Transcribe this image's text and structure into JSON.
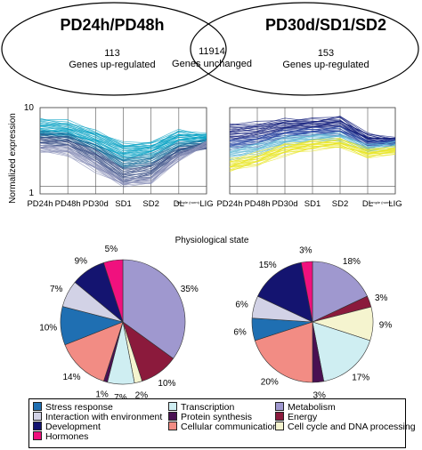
{
  "venn": {
    "left_title": "PD24h/PD48h",
    "left_count": "113",
    "left_caption": "Genes up-regulated",
    "center_count": "11914",
    "center_caption": "Genes unchanged",
    "right_title": "PD30d/SD1/SD2",
    "right_count": "153",
    "right_caption": "Genes up-regulated"
  },
  "line_plots": {
    "ylabel": "Normalized expression",
    "xlabel": "Physiological state",
    "y_ticks": [
      "10",
      "1"
    ],
    "left_small_text": "sample (norm)",
    "right_small_text": "sample (norm)"
  },
  "legend": {
    "items": [
      {
        "label": "Stress response",
        "color": "#1f6fb2"
      },
      {
        "label": "Transcription",
        "color": "#cfeef2"
      },
      {
        "label": "Metabolism",
        "color": "#9f98cf"
      },
      {
        "label": "Interaction with environment",
        "color": "#d2d2e6"
      },
      {
        "label": "Protein synthesis",
        "color": "#4a1052"
      },
      {
        "label": "Energy",
        "color": "#8b1a3c"
      },
      {
        "label": "Development",
        "color": "#141470"
      },
      {
        "label": "Cellular communication",
        "color": "#f28c84"
      },
      {
        "label": "Cell cycle and DNA processing",
        "color": "#f5f4cf"
      },
      {
        "label": "Hormones",
        "color": "#f0117e"
      }
    ]
  },
  "chart_data": [
    {
      "type": "line",
      "title": "",
      "x": [
        "PD24h",
        "PD48h",
        "PD30d",
        "SD1",
        "SD2",
        "DL",
        "LIG"
      ],
      "xlabel": "Physiological state",
      "ylabel": "Normalized expression",
      "yscale": "log",
      "ylim": [
        0.8,
        10
      ],
      "y_ticks": [
        1,
        10
      ],
      "grid": false,
      "series": [
        {
          "values": [
            7,
            6.5,
            5,
            3.5,
            3.5,
            5,
            4.5
          ]
        },
        {
          "values": [
            5,
            4.8,
            3.6,
            2.5,
            2.8,
            4,
            4
          ]
        },
        {
          "values": [
            4.5,
            4.2,
            3,
            1.8,
            2,
            3,
            3.5
          ]
        },
        {
          "values": [
            3.5,
            3.4,
            2.2,
            1.2,
            1.4,
            2.6,
            3.2
          ]
        },
        {
          "values": [
            2.8,
            2.5,
            1.6,
            1.05,
            1.1,
            2.2,
            3.6
          ]
        }
      ]
    },
    {
      "type": "line",
      "title": "",
      "x": [
        "PD24h",
        "PD48h",
        "PD30d",
        "SD1",
        "SD2",
        "DL",
        "LIG"
      ],
      "xlabel": "Physiological state",
      "ylabel": "Normalized expression",
      "yscale": "log",
      "ylim": [
        0.8,
        10
      ],
      "y_ticks": [
        1,
        10
      ],
      "grid": false,
      "series": [
        {
          "values": [
            6,
            6.2,
            7,
            7,
            7.5,
            4.5,
            4
          ]
        },
        {
          "values": [
            4,
            4.3,
            5.2,
            5.5,
            5.8,
            3.8,
            3.6
          ]
        },
        {
          "values": [
            3,
            3.4,
            4.2,
            4.5,
            4.6,
            3.2,
            3.6
          ]
        },
        {
          "values": [
            2,
            2.4,
            3.2,
            3.6,
            3.8,
            2.8,
            3
          ]
        },
        {
          "values": [
            1.6,
            1.9,
            2.6,
            3,
            3.2,
            2.4,
            2.7
          ]
        }
      ]
    },
    {
      "type": "pie",
      "title": "",
      "categories": [
        "Metabolism",
        "Energy",
        "Cell cycle and DNA processing",
        "Transcription",
        "Protein synthesis",
        "Cellular communication",
        "Stress response",
        "Interaction with environment",
        "Development",
        "Hormones"
      ],
      "values": [
        35,
        10,
        2,
        7,
        1,
        14,
        10,
        7,
        9,
        5
      ],
      "labels": [
        "35%",
        "10%",
        "2%",
        "7%",
        "1%",
        "14%",
        "10%",
        "7%",
        "9%",
        "5%"
      ]
    },
    {
      "type": "pie",
      "title": "",
      "categories": [
        "Metabolism",
        "Energy",
        "Cell cycle and DNA processing",
        "Transcription",
        "Protein synthesis",
        "Cellular communication",
        "Stress response",
        "Interaction with environment",
        "Development",
        "Hormones"
      ],
      "values": [
        18,
        3,
        9,
        17,
        3,
        20,
        6,
        6,
        15,
        3
      ],
      "labels": [
        "18%",
        "3%",
        "9%",
        "17%",
        "3%",
        "20%",
        "6%",
        "6%",
        "15%",
        "3%"
      ]
    }
  ]
}
